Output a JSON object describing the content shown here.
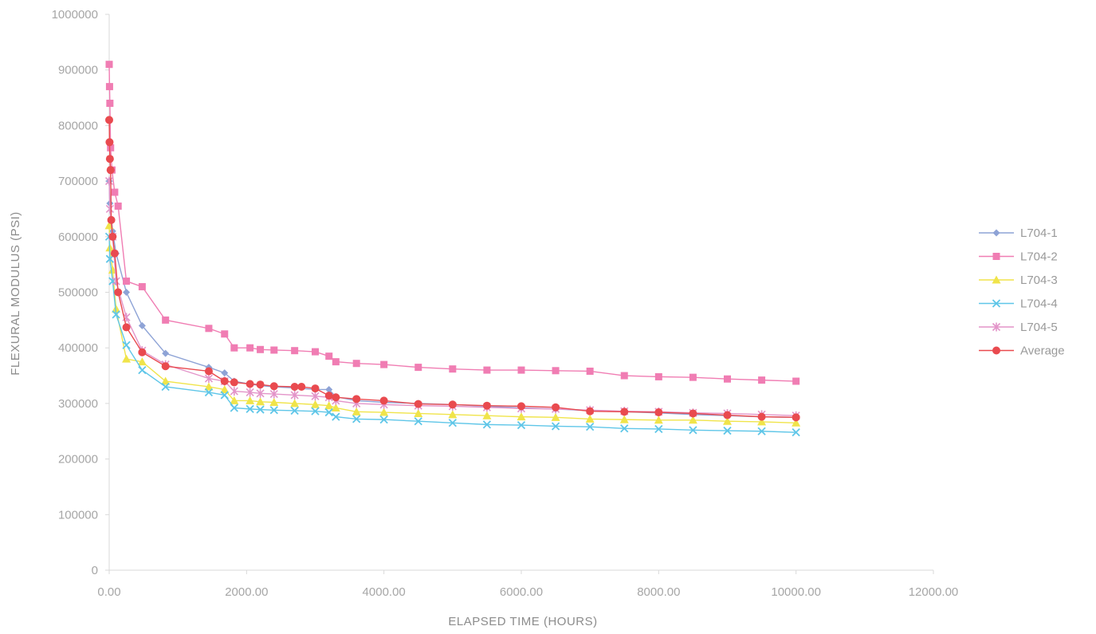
{
  "chart_data": {
    "type": "line",
    "title": "",
    "xlabel": "ELAPSED TIME (HOURS)",
    "ylabel": "FLEXURAL MODULUS (PSI)",
    "xlim": [
      0,
      12000
    ],
    "ylim": [
      0,
      1000000
    ],
    "x_ticks": [
      0,
      2000,
      4000,
      6000,
      8000,
      10000,
      12000
    ],
    "x_tick_labels": [
      "0.00",
      "2000.00",
      "4000.00",
      "6000.00",
      "8000.00",
      "10000.00",
      "12000.00"
    ],
    "y_ticks": [
      0,
      100000,
      200000,
      300000,
      400000,
      500000,
      600000,
      700000,
      800000,
      900000,
      1000000
    ],
    "y_tick_labels": [
      "0",
      "100000",
      "200000",
      "300000",
      "400000",
      "500000",
      "600000",
      "700000",
      "800000",
      "900000",
      "1000000"
    ],
    "grid": false,
    "legend_position": "right",
    "series": [
      {
        "name": "L704-1",
        "color": "#8ea3d6",
        "marker": "diamond",
        "x": [
          0,
          10,
          50,
          100,
          250,
          480,
          820,
          1450,
          1680,
          1820,
          2050,
          2200,
          2400,
          2700,
          3000,
          3200,
          3300,
          3600,
          4000,
          4500,
          5000,
          5500,
          6000,
          6500,
          7000,
          7500,
          8000,
          8500,
          9000,
          9500,
          10000
        ],
        "y": [
          700000,
          660000,
          610000,
          570000,
          500000,
          440000,
          390000,
          365000,
          355000,
          340000,
          335000,
          332000,
          330000,
          328000,
          325000,
          325000,
          312000,
          305000,
          302000,
          300000,
          298000,
          295000,
          292000,
          290000,
          287000,
          285000,
          283000,
          280000,
          278000,
          276000,
          275000
        ]
      },
      {
        "name": "L704-2",
        "color": "#f07db3",
        "marker": "square",
        "x": [
          0,
          5,
          10,
          20,
          40,
          80,
          130,
          250,
          480,
          820,
          1450,
          1680,
          1820,
          2050,
          2200,
          2400,
          2700,
          3000,
          3200,
          3300,
          3600,
          4000,
          4500,
          5000,
          5500,
          6000,
          6500,
          7000,
          7500,
          8000,
          8500,
          9000,
          9500,
          10000
        ],
        "y": [
          910000,
          870000,
          840000,
          760000,
          720000,
          680000,
          655000,
          520000,
          510000,
          450000,
          435000,
          425000,
          400000,
          400000,
          397000,
          396000,
          395000,
          393000,
          385000,
          375000,
          372000,
          370000,
          365000,
          362000,
          360000,
          360000,
          359000,
          358000,
          350000,
          348000,
          347000,
          344000,
          342000,
          340000
        ]
      },
      {
        "name": "L704-3",
        "color": "#f0e44a",
        "marker": "triangle",
        "x": [
          0,
          10,
          50,
          100,
          250,
          480,
          820,
          1450,
          1680,
          1820,
          2050,
          2200,
          2400,
          2700,
          3000,
          3200,
          3300,
          3600,
          4000,
          4500,
          5000,
          5500,
          6000,
          6500,
          7000,
          7500,
          8000,
          8500,
          9000,
          9500,
          10000
        ],
        "y": [
          620000,
          580000,
          540000,
          470000,
          380000,
          375000,
          340000,
          330000,
          325000,
          305000,
          305000,
          303000,
          302000,
          300000,
          298000,
          296000,
          292000,
          285000,
          284000,
          282000,
          280000,
          278000,
          276000,
          275000,
          272000,
          271000,
          270000,
          270000,
          268000,
          267000,
          265000
        ]
      },
      {
        "name": "L704-4",
        "color": "#5fc6e8",
        "marker": "x",
        "x": [
          0,
          10,
          50,
          100,
          250,
          480,
          820,
          1450,
          1680,
          1820,
          2050,
          2200,
          2400,
          2700,
          3000,
          3200,
          3300,
          3600,
          4000,
          4500,
          5000,
          5500,
          6000,
          6500,
          7000,
          7500,
          8000,
          8500,
          9000,
          9500,
          10000
        ],
        "y": [
          600000,
          560000,
          520000,
          460000,
          405000,
          360000,
          330000,
          320000,
          315000,
          292000,
          290000,
          289000,
          288000,
          287000,
          286000,
          284000,
          276000,
          272000,
          271000,
          268000,
          265000,
          262000,
          261000,
          259000,
          258000,
          255000,
          254000,
          252000,
          251000,
          250000,
          248000
        ]
      },
      {
        "name": "L704-5",
        "color": "#e394c9",
        "marker": "star",
        "x": [
          0,
          10,
          50,
          100,
          250,
          480,
          820,
          1450,
          1680,
          1820,
          2050,
          2200,
          2400,
          2700,
          3000,
          3200,
          3300,
          3600,
          4000,
          4500,
          5000,
          5500,
          6000,
          6500,
          7000,
          7500,
          8000,
          8500,
          9000,
          9500,
          10000
        ],
        "y": [
          700000,
          650000,
          600000,
          520000,
          455000,
          395000,
          370000,
          345000,
          340000,
          322000,
          320000,
          318000,
          317000,
          315000,
          313000,
          311000,
          305000,
          300000,
          298000,
          296000,
          295000,
          293000,
          291000,
          290000,
          288000,
          286000,
          285000,
          283000,
          282000,
          280000,
          278000
        ]
      },
      {
        "name": "Average",
        "color": "#e94a4f",
        "marker": "circle",
        "x": [
          0,
          5,
          10,
          20,
          30,
          50,
          80,
          130,
          250,
          480,
          820,
          1450,
          1680,
          1820,
          2050,
          2200,
          2400,
          2700,
          2800,
          3000,
          3200,
          3300,
          3600,
          4000,
          4500,
          5000,
          5500,
          6000,
          6500,
          7000,
          7500,
          8000,
          8500,
          9000,
          9500,
          10000
        ],
        "y": [
          810000,
          770000,
          740000,
          720000,
          630000,
          600000,
          570000,
          500000,
          437000,
          392000,
          367000,
          358000,
          340000,
          338000,
          335000,
          334000,
          331000,
          330000,
          330000,
          327000,
          314000,
          311000,
          308000,
          305000,
          299000,
          298000,
          296000,
          295000,
          293000,
          286000,
          285000,
          284000,
          282000,
          279000,
          276000,
          275000
        ]
      }
    ]
  }
}
